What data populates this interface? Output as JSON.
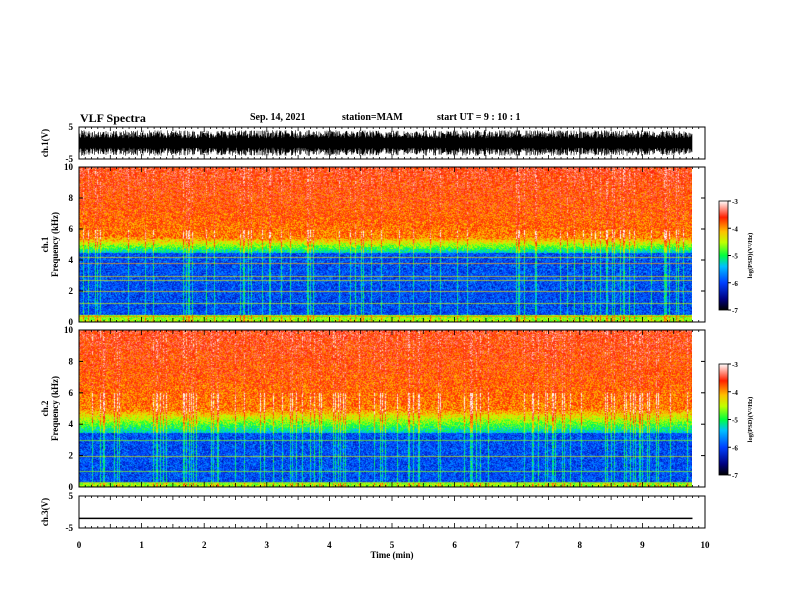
{
  "header": {
    "title": "VLF Spectra",
    "date": "Sep. 14, 2021",
    "station": "station=MAM",
    "start": "start UT =   9 : 10 : 1"
  },
  "chart_data": [
    {
      "type": "line",
      "panel": "ch1-waveform",
      "ylabel": "ch.1(V)",
      "ylim": [
        -5,
        5
      ],
      "yticks": [
        "5",
        "-5"
      ],
      "xlim": [
        0,
        10
      ],
      "note": "dense broadband voltage waveform, roughly -4 to 4 V"
    },
    {
      "type": "heatmap",
      "panel": "ch1-spectrogram",
      "ylabel": "ch.1 Frequency (kHz)",
      "ylim": [
        0,
        10
      ],
      "yticks": [
        "0",
        "2",
        "4",
        "6",
        "8",
        "10"
      ],
      "xlim": [
        0,
        9.8
      ],
      "colorbar": {
        "label": "log(PSD)(V²/Hz)",
        "range": [
          -7,
          -3
        ],
        "ticks": [
          "-3",
          "-4",
          "-5",
          "-6",
          "-7"
        ]
      },
      "bands_khz": [
        0.4,
        1.2,
        2.0,
        2.7,
        3.0,
        3.8,
        4.2
      ],
      "low_psd_region_khz": [
        0.5,
        4.5
      ],
      "high_psd_region_khz": [
        5.5,
        10
      ]
    },
    {
      "type": "heatmap",
      "panel": "ch2-spectrogram",
      "ylabel": "ch.2 Frequency (kHz)",
      "ylim": [
        0,
        10
      ],
      "yticks": [
        "0",
        "2",
        "4",
        "6",
        "8",
        "10"
      ],
      "xlim": [
        0,
        9.8
      ],
      "colorbar": {
        "label": "log(PSD)(V²/Hz)",
        "range": [
          -7,
          -3
        ],
        "ticks": [
          "-3",
          "-4",
          "-5",
          "-6",
          "-7"
        ]
      },
      "bands_khz": [
        0.3,
        1.0,
        2.0,
        3.0
      ],
      "low_psd_region_khz": [
        0.3,
        3.5
      ],
      "high_psd_region_khz": [
        5.0,
        10
      ]
    },
    {
      "type": "line",
      "panel": "ch3-waveform",
      "ylabel": "ch.3(V)",
      "ylim": [
        -5,
        5
      ],
      "yticks": [
        "5",
        "-5"
      ],
      "xlim": [
        0,
        10
      ],
      "constant_value": -2
    }
  ],
  "xaxis": {
    "label": "Time (min)",
    "ticks": [
      "0",
      "1",
      "2",
      "3",
      "4",
      "5",
      "6",
      "7",
      "8",
      "9",
      "10"
    ]
  },
  "colors": {
    "colormap": [
      "#000066",
      "#0000ff",
      "#0080ff",
      "#00ffff",
      "#00ff00",
      "#ffff00",
      "#ff8000",
      "#ff0000",
      "#ffffff"
    ]
  }
}
